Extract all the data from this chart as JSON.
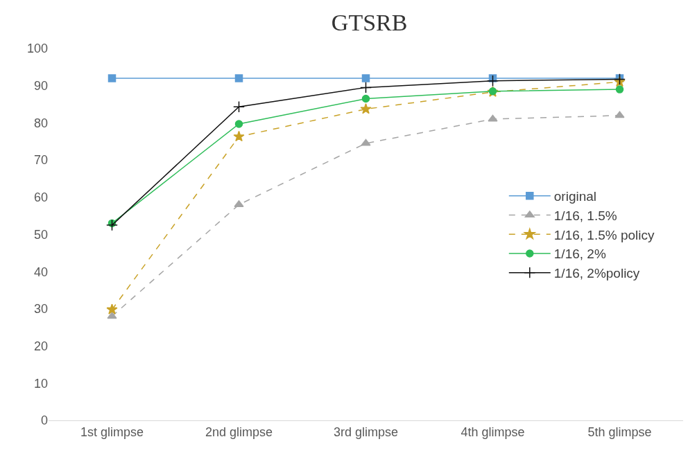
{
  "chart_data": {
    "type": "line",
    "title": "GTSRB",
    "categories": [
      "1st glimpse",
      "2nd glimpse",
      "3rd glimpse",
      "4th glimpse",
      "5th glimpse"
    ],
    "series": [
      {
        "name": "original",
        "color": "#5b9bd5",
        "marker": "square",
        "line_style": "solid",
        "values": [
          92,
          92,
          92,
          92,
          92
        ]
      },
      {
        "name": "1/16, 1.5%",
        "color": "#a5a5a5",
        "marker": "triangle",
        "line_style": "dashed",
        "values": [
          28,
          58,
          74.5,
          81,
          82
        ]
      },
      {
        "name": "1/16, 1.5% policy",
        "color": "#c9a227",
        "marker": "star",
        "line_style": "dashed",
        "values": [
          29.8,
          76.3,
          83.7,
          88.3,
          91
        ]
      },
      {
        "name": "1/16, 2%",
        "color": "#2ebd59",
        "marker": "circle",
        "line_style": "solid",
        "values": [
          53,
          79.7,
          86.5,
          88.5,
          89
        ]
      },
      {
        "name": "1/16, 2%policy",
        "color": "#111111",
        "marker": "cross",
        "line_style": "solid",
        "values": [
          52.5,
          84.3,
          89.5,
          91.3,
          91.7
        ]
      }
    ],
    "ylim": [
      0,
      100
    ],
    "yticks": [
      0,
      10,
      20,
      30,
      40,
      50,
      60,
      70,
      80,
      90,
      100
    ],
    "legend": "right"
  }
}
